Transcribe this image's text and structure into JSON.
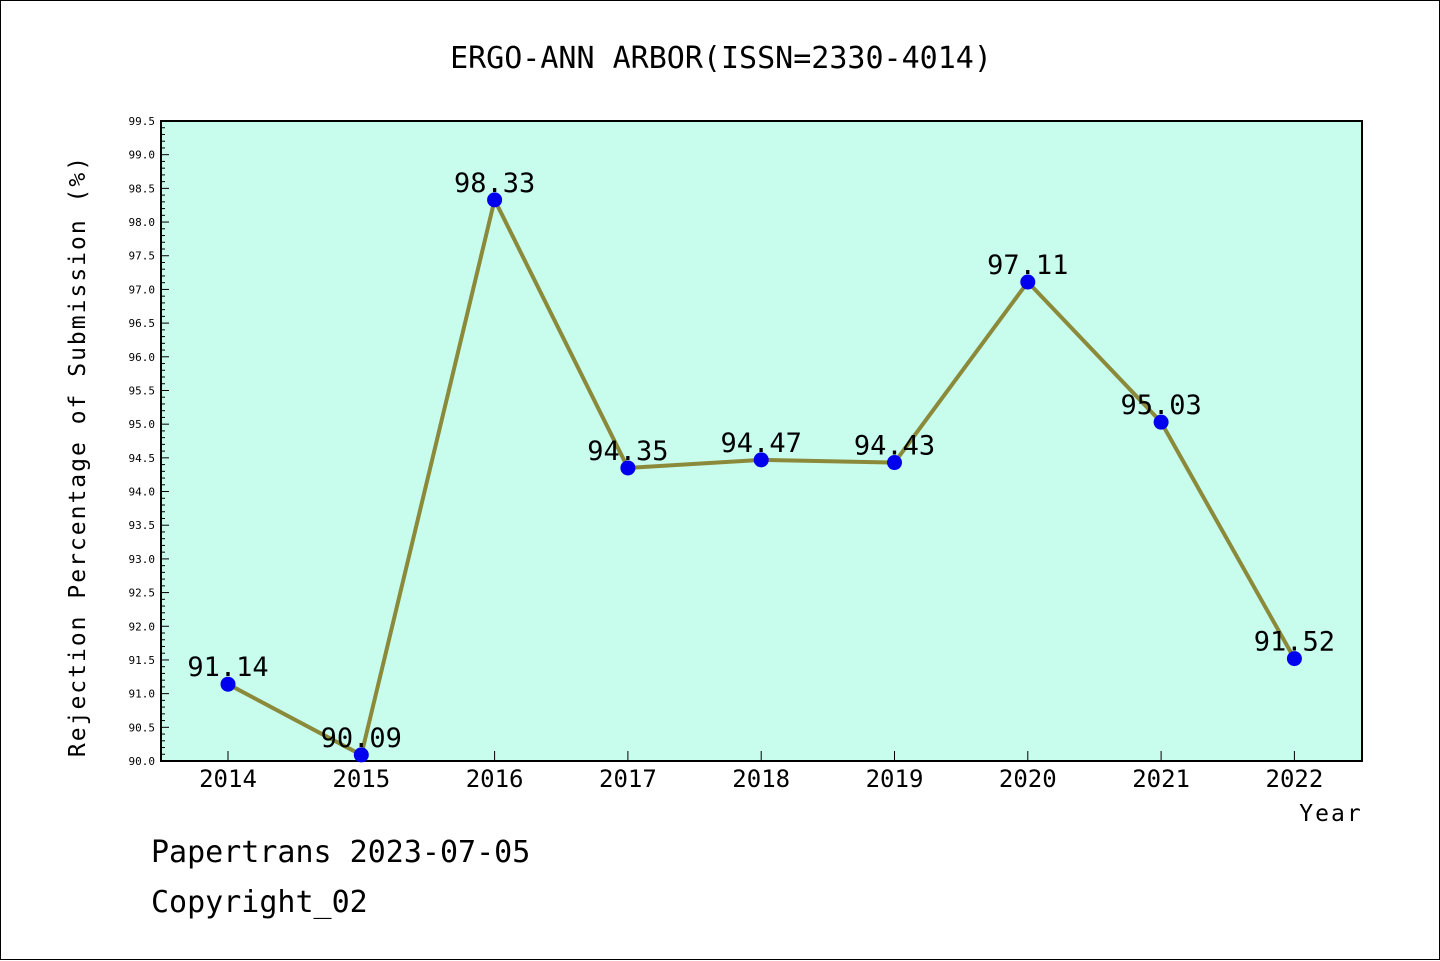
{
  "footer": {
    "line1": "Papertrans 2023-07-05",
    "line2": "Copyright_02"
  },
  "chart_data": {
    "type": "line",
    "title": "ERGO-ANN ARBOR(ISSN=2330-4014)",
    "xlabel": "Year",
    "ylabel": "Rejection Percentage of Submission (%)",
    "categories": [
      "2014",
      "2015",
      "2016",
      "2017",
      "2018",
      "2019",
      "2020",
      "2021",
      "2022"
    ],
    "values": [
      91.14,
      90.09,
      98.33,
      94.35,
      94.47,
      94.43,
      97.11,
      95.03,
      91.52
    ],
    "data_labels": [
      "91.14",
      "90.09",
      "98.33",
      "94.35",
      "94.47",
      "94.43",
      "97.11",
      "95.03",
      "91.52"
    ],
    "ylim": [
      90.0,
      99.5
    ],
    "ytick_step": 0.5,
    "grid": false,
    "colors": {
      "plot_background": "#c8fced",
      "line": "#8b8a3a",
      "marker": "#0000ee"
    }
  }
}
